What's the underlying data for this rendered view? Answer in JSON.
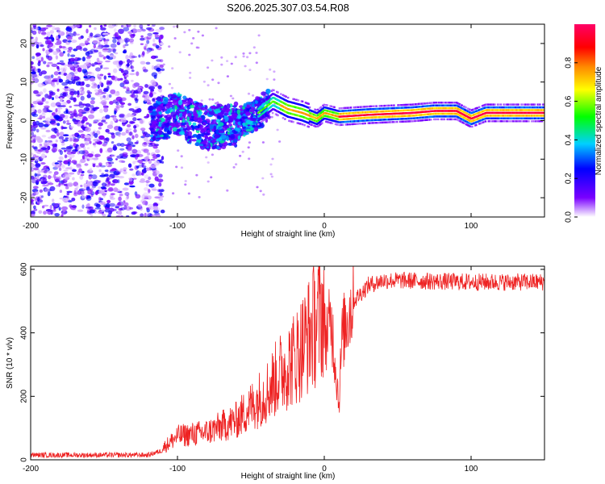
{
  "title": "S206.2025.307.03.54.R08",
  "chart_data": [
    {
      "type": "heatmap",
      "name": "spectrogram",
      "xlabel": "Height of straight line (km)",
      "ylabel": "Frequency (Hz)",
      "xlim": [
        -200,
        150
      ],
      "ylim": [
        -25,
        25
      ],
      "xticks": [
        -200,
        -100,
        0,
        100
      ],
      "yticks": [
        -20,
        -10,
        0,
        10,
        20
      ],
      "colorbar": {
        "label": "Normalized spectral amplitude",
        "range": [
          0,
          1
        ],
        "ticks": [
          0.0,
          0.2,
          0.4,
          0.6,
          0.8
        ],
        "tick_labels": [
          "0.0",
          "0.2",
          "0.4",
          "0.6",
          "0.8"
        ],
        "colormap": [
          "#ffffff",
          "#7a00ff",
          "#0000ff",
          "#00d0ff",
          "#00ff00",
          "#ffff00",
          "#ff8800",
          "#ff0000",
          "#ff0066"
        ]
      },
      "ridge": {
        "x": [
          -118,
          -100,
          -80,
          -60,
          -45,
          -35,
          -25,
          -15,
          -5,
          0,
          10,
          30,
          60,
          75,
          90,
          100,
          110,
          150
        ],
        "y": [
          0.0,
          1.5,
          -2.0,
          -1.0,
          2.0,
          5.0,
          3.0,
          2.0,
          0.5,
          2.0,
          1.0,
          1.5,
          2.0,
          2.5,
          2.5,
          0.5,
          2.0,
          2.0
        ],
        "peak_amplitude": 0.98
      }
    },
    {
      "type": "line",
      "name": "snr",
      "xlabel": "Height of straight line (km)",
      "ylabel": "SNR (10 * v/v)",
      "xlim": [
        -200,
        150
      ],
      "ylim": [
        0,
        610
      ],
      "xticks": [
        -200,
        -100,
        0,
        100
      ],
      "yticks": [
        0,
        200,
        400,
        600
      ],
      "color": "#ee2222",
      "series": [
        {
          "name": "SNR",
          "x": [
            -200,
            -150,
            -120,
            -110,
            -100,
            -80,
            -60,
            -40,
            -30,
            -20,
            -10,
            0,
            5,
            10,
            12,
            15,
            20,
            30,
            40,
            50,
            100,
            150
          ],
          "y": [
            15,
            15,
            15,
            30,
            60,
            70,
            100,
            170,
            220,
            260,
            320,
            390,
            430,
            180,
            380,
            440,
            500,
            550,
            565,
            565,
            560,
            560
          ]
        }
      ]
    }
  ]
}
